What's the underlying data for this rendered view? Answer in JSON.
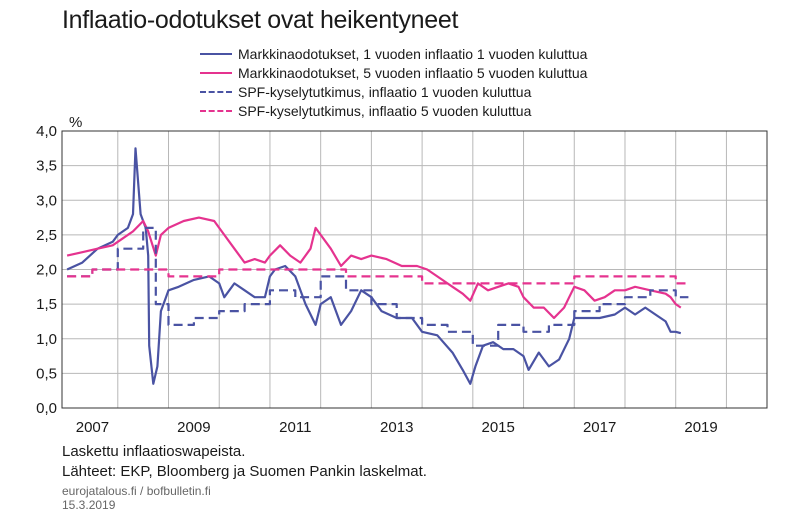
{
  "title": "Inflaatio-odotukset ovat heikentyneet",
  "footer": {
    "note": "Laskettu inflaatioswapeista.",
    "sources": "Lähteet: EKP, Bloomberg ja Suomen Pankin laskelmat.",
    "url": "eurojatalous.fi / bofbulletin.fi",
    "date": "15.3.2019"
  },
  "colors": {
    "blue": "#4a53a3",
    "pink": "#e5338f"
  },
  "chart_data": {
    "type": "line",
    "title": "Inflaatio-odotukset ovat heikentyneet",
    "ylabel": "%",
    "xlim": [
      2006.9,
      2020.8
    ],
    "ylim": [
      0,
      4
    ],
    "yticks": [
      0,
      0.5,
      1.0,
      1.5,
      2.0,
      2.5,
      3.0,
      3.5,
      4.0
    ],
    "ytick_labels": [
      "0,0",
      "0,5",
      "1,0",
      "1,5",
      "2,0",
      "2,5",
      "3,0",
      "3,5",
      "4,0"
    ],
    "xtick_labels": [
      "2007",
      "2009",
      "2011",
      "2013",
      "2015",
      "2017",
      "2019"
    ],
    "grid": true,
    "legend_position": "top",
    "series": [
      {
        "name": "Markkinaodotukset, 1 vuoden inflaatio 1 vuoden kuluttua",
        "color": "#4a53a3",
        "style": "solid",
        "points": [
          [
            2007.0,
            2.0
          ],
          [
            2007.3,
            2.1
          ],
          [
            2007.6,
            2.3
          ],
          [
            2007.9,
            2.4
          ],
          [
            2008.0,
            2.5
          ],
          [
            2008.2,
            2.6
          ],
          [
            2008.3,
            2.8
          ],
          [
            2008.35,
            3.75
          ],
          [
            2008.45,
            2.8
          ],
          [
            2008.55,
            2.6
          ],
          [
            2008.6,
            2.2
          ],
          [
            2008.62,
            0.9
          ],
          [
            2008.7,
            0.35
          ],
          [
            2008.78,
            0.6
          ],
          [
            2008.85,
            1.4
          ],
          [
            2008.95,
            1.6
          ],
          [
            2009.0,
            1.7
          ],
          [
            2009.2,
            1.75
          ],
          [
            2009.5,
            1.85
          ],
          [
            2009.8,
            1.9
          ],
          [
            2010.0,
            1.8
          ],
          [
            2010.1,
            1.6
          ],
          [
            2010.3,
            1.8
          ],
          [
            2010.5,
            1.7
          ],
          [
            2010.7,
            1.6
          ],
          [
            2010.9,
            1.6
          ],
          [
            2011.0,
            1.9
          ],
          [
            2011.1,
            2.0
          ],
          [
            2011.3,
            2.05
          ],
          [
            2011.5,
            1.9
          ],
          [
            2011.7,
            1.5
          ],
          [
            2011.9,
            1.2
          ],
          [
            2012.0,
            1.5
          ],
          [
            2012.2,
            1.6
          ],
          [
            2012.4,
            1.2
          ],
          [
            2012.6,
            1.4
          ],
          [
            2012.8,
            1.7
          ],
          [
            2013.0,
            1.6
          ],
          [
            2013.2,
            1.4
          ],
          [
            2013.5,
            1.3
          ],
          [
            2013.8,
            1.3
          ],
          [
            2014.0,
            1.1
          ],
          [
            2014.3,
            1.05
          ],
          [
            2014.6,
            0.8
          ],
          [
            2014.8,
            0.55
          ],
          [
            2014.95,
            0.35
          ],
          [
            2015.05,
            0.6
          ],
          [
            2015.2,
            0.9
          ],
          [
            2015.4,
            0.95
          ],
          [
            2015.6,
            0.85
          ],
          [
            2015.8,
            0.85
          ],
          [
            2016.0,
            0.75
          ],
          [
            2016.1,
            0.55
          ],
          [
            2016.3,
            0.8
          ],
          [
            2016.5,
            0.6
          ],
          [
            2016.7,
            0.7
          ],
          [
            2016.9,
            1.0
          ],
          [
            2017.0,
            1.3
          ],
          [
            2017.2,
            1.3
          ],
          [
            2017.5,
            1.3
          ],
          [
            2017.8,
            1.35
          ],
          [
            2018.0,
            1.45
          ],
          [
            2018.2,
            1.35
          ],
          [
            2018.4,
            1.45
          ],
          [
            2018.6,
            1.35
          ],
          [
            2018.8,
            1.25
          ],
          [
            2018.9,
            1.1
          ],
          [
            2019.0,
            1.1
          ],
          [
            2019.1,
            1.08
          ]
        ]
      },
      {
        "name": "Markkinaodotukset, 5 vuoden inflaatio 5 vuoden kuluttua",
        "color": "#e5338f",
        "style": "solid",
        "points": [
          [
            2007.0,
            2.2
          ],
          [
            2007.3,
            2.25
          ],
          [
            2007.6,
            2.3
          ],
          [
            2007.9,
            2.35
          ],
          [
            2008.1,
            2.45
          ],
          [
            2008.3,
            2.55
          ],
          [
            2008.5,
            2.7
          ],
          [
            2008.6,
            2.55
          ],
          [
            2008.75,
            2.2
          ],
          [
            2008.85,
            2.5
          ],
          [
            2009.0,
            2.6
          ],
          [
            2009.3,
            2.7
          ],
          [
            2009.6,
            2.75
          ],
          [
            2009.9,
            2.7
          ],
          [
            2010.1,
            2.5
          ],
          [
            2010.3,
            2.3
          ],
          [
            2010.5,
            2.1
          ],
          [
            2010.7,
            2.15
          ],
          [
            2010.9,
            2.1
          ],
          [
            2011.0,
            2.2
          ],
          [
            2011.2,
            2.35
          ],
          [
            2011.4,
            2.2
          ],
          [
            2011.6,
            2.1
          ],
          [
            2011.8,
            2.3
          ],
          [
            2011.9,
            2.6
          ],
          [
            2012.0,
            2.5
          ],
          [
            2012.2,
            2.3
          ],
          [
            2012.4,
            2.05
          ],
          [
            2012.6,
            2.2
          ],
          [
            2012.8,
            2.15
          ],
          [
            2013.0,
            2.2
          ],
          [
            2013.3,
            2.15
          ],
          [
            2013.6,
            2.05
          ],
          [
            2013.9,
            2.05
          ],
          [
            2014.1,
            2.0
          ],
          [
            2014.4,
            1.85
          ],
          [
            2014.6,
            1.75
          ],
          [
            2014.8,
            1.65
          ],
          [
            2014.95,
            1.55
          ],
          [
            2015.1,
            1.8
          ],
          [
            2015.3,
            1.7
          ],
          [
            2015.5,
            1.75
          ],
          [
            2015.7,
            1.8
          ],
          [
            2015.9,
            1.75
          ],
          [
            2016.0,
            1.6
          ],
          [
            2016.2,
            1.45
          ],
          [
            2016.4,
            1.45
          ],
          [
            2016.6,
            1.3
          ],
          [
            2016.8,
            1.45
          ],
          [
            2016.9,
            1.6
          ],
          [
            2017.0,
            1.75
          ],
          [
            2017.2,
            1.7
          ],
          [
            2017.4,
            1.55
          ],
          [
            2017.6,
            1.6
          ],
          [
            2017.8,
            1.7
          ],
          [
            2018.0,
            1.7
          ],
          [
            2018.2,
            1.75
          ],
          [
            2018.5,
            1.7
          ],
          [
            2018.8,
            1.65
          ],
          [
            2018.9,
            1.6
          ],
          [
            2019.0,
            1.5
          ],
          [
            2019.1,
            1.45
          ]
        ]
      },
      {
        "name": "SPF-kyselytutkimus, inflaatio 1 vuoden kuluttua",
        "color": "#4a53a3",
        "style": "dashed",
        "points": [
          [
            2007.0,
            1.9
          ],
          [
            2007.5,
            1.9
          ],
          [
            2007.5,
            2.0
          ],
          [
            2008.0,
            2.0
          ],
          [
            2008.0,
            2.3
          ],
          [
            2008.5,
            2.3
          ],
          [
            2008.5,
            2.6
          ],
          [
            2008.75,
            2.6
          ],
          [
            2008.75,
            1.5
          ],
          [
            2009.0,
            1.5
          ],
          [
            2009.0,
            1.2
          ],
          [
            2009.5,
            1.2
          ],
          [
            2009.5,
            1.3
          ],
          [
            2010.0,
            1.3
          ],
          [
            2010.0,
            1.4
          ],
          [
            2010.5,
            1.4
          ],
          [
            2010.5,
            1.5
          ],
          [
            2011.0,
            1.5
          ],
          [
            2011.0,
            1.7
          ],
          [
            2011.5,
            1.7
          ],
          [
            2011.5,
            1.6
          ],
          [
            2012.0,
            1.6
          ],
          [
            2012.0,
            1.9
          ],
          [
            2012.5,
            1.9
          ],
          [
            2012.5,
            1.7
          ],
          [
            2013.0,
            1.7
          ],
          [
            2013.0,
            1.5
          ],
          [
            2013.5,
            1.5
          ],
          [
            2013.5,
            1.3
          ],
          [
            2014.0,
            1.3
          ],
          [
            2014.0,
            1.2
          ],
          [
            2014.5,
            1.2
          ],
          [
            2014.5,
            1.1
          ],
          [
            2015.0,
            1.1
          ],
          [
            2015.0,
            0.9
          ],
          [
            2015.5,
            0.9
          ],
          [
            2015.5,
            1.2
          ],
          [
            2016.0,
            1.2
          ],
          [
            2016.0,
            1.1
          ],
          [
            2016.5,
            1.1
          ],
          [
            2016.5,
            1.2
          ],
          [
            2017.0,
            1.2
          ],
          [
            2017.0,
            1.4
          ],
          [
            2017.5,
            1.4
          ],
          [
            2017.5,
            1.5
          ],
          [
            2018.0,
            1.5
          ],
          [
            2018.0,
            1.6
          ],
          [
            2018.5,
            1.6
          ],
          [
            2018.5,
            1.7
          ],
          [
            2019.0,
            1.7
          ],
          [
            2019.0,
            1.6
          ],
          [
            2019.25,
            1.6
          ]
        ]
      },
      {
        "name": "SPF-kyselytutkimus, inflaatio 5 vuoden kuluttua",
        "color": "#e5338f",
        "style": "dashed",
        "points": [
          [
            2007.0,
            1.9
          ],
          [
            2007.5,
            1.9
          ],
          [
            2007.5,
            2.0
          ],
          [
            2009.0,
            2.0
          ],
          [
            2009.0,
            1.9
          ],
          [
            2010.0,
            1.9
          ],
          [
            2010.0,
            2.0
          ],
          [
            2012.5,
            2.0
          ],
          [
            2012.5,
            1.9
          ],
          [
            2014.0,
            1.9
          ],
          [
            2014.0,
            1.8
          ],
          [
            2016.5,
            1.8
          ],
          [
            2016.5,
            1.8
          ],
          [
            2017.0,
            1.8
          ],
          [
            2017.0,
            1.9
          ],
          [
            2019.0,
            1.9
          ],
          [
            2019.0,
            1.8
          ],
          [
            2019.25,
            1.8
          ]
        ]
      }
    ]
  }
}
